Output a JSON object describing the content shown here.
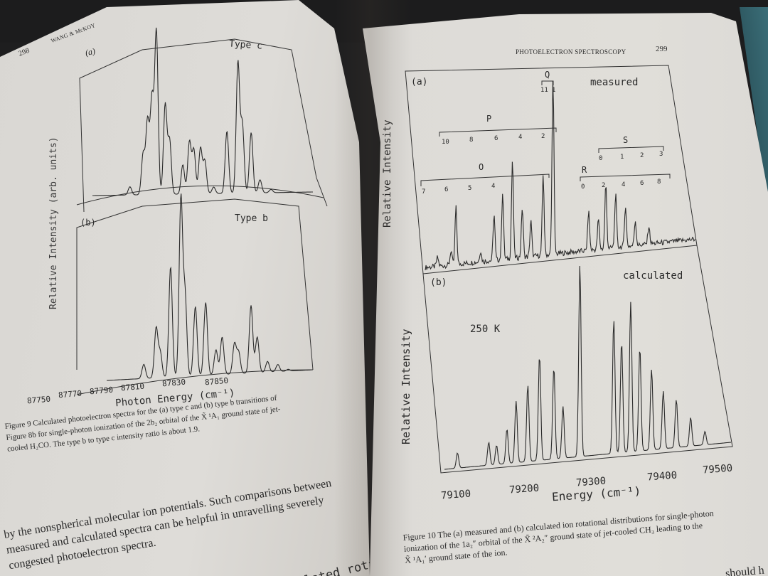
{
  "left_page": {
    "page_number": "298",
    "running_head": "WANG & McKOY",
    "y_axis_label": "Relative Intensity (arb. units)",
    "panel_a": {
      "tag": "(a)",
      "title": "Type c"
    },
    "panel_b": {
      "tag": "(b)",
      "title": "Type b"
    },
    "x_axis_label": "Photon Energy (cm⁻¹)",
    "x_ticks": [
      "87750",
      "87770",
      "87790",
      "87810",
      "87830",
      "87850"
    ],
    "caption_lines": [
      "Figure 9  Calculated photoelectron spectra for the (a) type c and (b) type b transitions of",
      "Figure 8b for single-photon ionization of the 2b₂ orbital of the X̃ ¹A₁ ground state of jet-",
      "cooled H₂CO. The type b to type c intensity ratio is about 1.9."
    ],
    "body_lines": [
      "by the nonspherical molecular ion potentials. Such comparisons between",
      "measured and calculated spectra can be helpful in unravelling severely",
      "congested photoelectron spectra."
    ],
    "bleed_text": "(b) calculated rotationally"
  },
  "right_page": {
    "page_number": "299",
    "running_head": "PHOTOELECTRON SPECTROSCOPY",
    "panel_a": {
      "tag": "(a)",
      "title": "measured",
      "y_axis_label": "Relative Intensity",
      "branches": {
        "Q": {
          "label": "Q",
          "ticks": [
            "11",
            "1"
          ]
        },
        "P": {
          "label": "P",
          "ticks": [
            "10",
            "8",
            "6",
            "4",
            "2"
          ]
        },
        "O": {
          "label": "O",
          "ticks": [
            "7",
            "6",
            "5",
            "4"
          ]
        },
        "S": {
          "label": "S",
          "ticks": [
            "0",
            "1",
            "2",
            "3"
          ]
        },
        "R": {
          "label": "R",
          "ticks": [
            "0",
            "2",
            "4",
            "6",
            "8"
          ]
        }
      }
    },
    "panel_b": {
      "tag": "(b)",
      "title": "calculated",
      "temperature": "250 K",
      "y_axis_label": "Relative Intensity"
    },
    "x_axis_label": "Energy (cm⁻¹)",
    "x_ticks": [
      "79100",
      "79200",
      "79300",
      "79400",
      "79500"
    ],
    "caption_lines": [
      "Figure 10   The (a) measured and (b) calculated ion rotational distributions for single-photon",
      "ionization of the 1a₂″ orbital of the X̃ ²A₂″ ground state of jet-cooled CH₃ leading to the",
      "X̃ ¹A₁′ ground state of the ion."
    ],
    "bleed_text": "should h"
  },
  "chart_data": [
    {
      "type": "line",
      "title": "Type c",
      "panel": "Figure 9 (a)",
      "xlabel": "Photon Energy (cm^-1)",
      "ylabel": "Relative Intensity (arb. units)",
      "xlim": [
        87750,
        87850
      ],
      "x_ticks": [
        87750,
        87770,
        87790,
        87810,
        87830,
        87850
      ],
      "peaks": [
        {
          "x": 87767,
          "y": 0.05
        },
        {
          "x": 87773,
          "y": 0.25
        },
        {
          "x": 87775,
          "y": 0.45
        },
        {
          "x": 87777,
          "y": 0.58
        },
        {
          "x": 87779,
          "y": 1.0
        },
        {
          "x": 87783,
          "y": 0.55
        },
        {
          "x": 87785,
          "y": 0.33
        },
        {
          "x": 87791,
          "y": 0.18
        },
        {
          "x": 87794,
          "y": 0.32
        },
        {
          "x": 87796,
          "y": 0.27
        },
        {
          "x": 87799,
          "y": 0.28
        },
        {
          "x": 87801,
          "y": 0.2
        },
        {
          "x": 87805,
          "y": 0.04
        },
        {
          "x": 87811,
          "y": 0.38
        },
        {
          "x": 87816,
          "y": 0.8
        },
        {
          "x": 87818,
          "y": 0.42
        },
        {
          "x": 87822,
          "y": 0.37
        },
        {
          "x": 87826,
          "y": 0.08
        },
        {
          "x": 87831,
          "y": 0.02
        }
      ]
    },
    {
      "type": "line",
      "title": "Type b",
      "panel": "Figure 9 (b)",
      "xlabel": "Photon Energy (cm^-1)",
      "ylabel": "Relative Intensity (arb. units)",
      "xlim": [
        87750,
        87850
      ],
      "x_ticks": [
        87750,
        87770,
        87790,
        87810,
        87830,
        87850
      ],
      "peaks": [
        {
          "x": 87768,
          "y": 0.08
        },
        {
          "x": 87774,
          "y": 0.28
        },
        {
          "x": 87776,
          "y": 0.14
        },
        {
          "x": 87781,
          "y": 0.62
        },
        {
          "x": 87786,
          "y": 1.0
        },
        {
          "x": 87788,
          "y": 0.45
        },
        {
          "x": 87793,
          "y": 0.39
        },
        {
          "x": 87798,
          "y": 0.41
        },
        {
          "x": 87803,
          "y": 0.14
        },
        {
          "x": 87806,
          "y": 0.21
        },
        {
          "x": 87812,
          "y": 0.17
        },
        {
          "x": 87814,
          "y": 0.12
        },
        {
          "x": 87820,
          "y": 0.38
        },
        {
          "x": 87823,
          "y": 0.2
        },
        {
          "x": 87828,
          "y": 0.06
        },
        {
          "x": 87833,
          "y": 0.04
        },
        {
          "x": 87838,
          "y": 0.01
        }
      ]
    },
    {
      "type": "line",
      "title": "measured",
      "panel": "Figure 10 (a)",
      "xlabel": "Energy (cm^-1)",
      "ylabel": "Relative Intensity",
      "xlim": [
        79080,
        79520
      ],
      "annotations": [
        "Q branch 11..1",
        "P branch 10..2",
        "O branch 7..4",
        "S branch 0..3",
        "R branch 0..8"
      ],
      "peaks": [
        {
          "x": 79100,
          "y": 0.05
        },
        {
          "x": 79122,
          "y": 0.08
        },
        {
          "x": 79130,
          "y": 0.32
        },
        {
          "x": 79170,
          "y": 0.06
        },
        {
          "x": 79192,
          "y": 0.26
        },
        {
          "x": 79206,
          "y": 0.38
        },
        {
          "x": 79222,
          "y": 0.55
        },
        {
          "x": 79238,
          "y": 0.28
        },
        {
          "x": 79252,
          "y": 0.2
        },
        {
          "x": 79272,
          "y": 0.45
        },
        {
          "x": 79288,
          "y": 1.0
        },
        {
          "x": 79346,
          "y": 0.22
        },
        {
          "x": 79362,
          "y": 0.17
        },
        {
          "x": 79374,
          "y": 0.36
        },
        {
          "x": 79390,
          "y": 0.3
        },
        {
          "x": 79406,
          "y": 0.23
        },
        {
          "x": 79422,
          "y": 0.14
        },
        {
          "x": 79444,
          "y": 0.1
        }
      ]
    },
    {
      "type": "line",
      "title": "calculated",
      "panel": "Figure 10 (b)",
      "subtitle": "250 K",
      "xlabel": "Energy (cm^-1)",
      "ylabel": "Relative Intensity",
      "xlim": [
        79080,
        79520
      ],
      "x_ticks": [
        79100,
        79200,
        79300,
        79400,
        79500
      ],
      "peaks": [
        {
          "x": 79100,
          "y": 0.08
        },
        {
          "x": 79148,
          "y": 0.12
        },
        {
          "x": 79160,
          "y": 0.1
        },
        {
          "x": 79176,
          "y": 0.18
        },
        {
          "x": 79190,
          "y": 0.32
        },
        {
          "x": 79208,
          "y": 0.4
        },
        {
          "x": 79226,
          "y": 0.55
        },
        {
          "x": 79248,
          "y": 0.48
        },
        {
          "x": 79262,
          "y": 0.27
        },
        {
          "x": 79288,
          "y": 1.0
        },
        {
          "x": 79340,
          "y": 0.7
        },
        {
          "x": 79352,
          "y": 0.58
        },
        {
          "x": 79366,
          "y": 0.78
        },
        {
          "x": 79380,
          "y": 0.54
        },
        {
          "x": 79398,
          "y": 0.42
        },
        {
          "x": 79416,
          "y": 0.3
        },
        {
          "x": 79436,
          "y": 0.25
        },
        {
          "x": 79458,
          "y": 0.15
        },
        {
          "x": 79480,
          "y": 0.07
        }
      ]
    }
  ]
}
